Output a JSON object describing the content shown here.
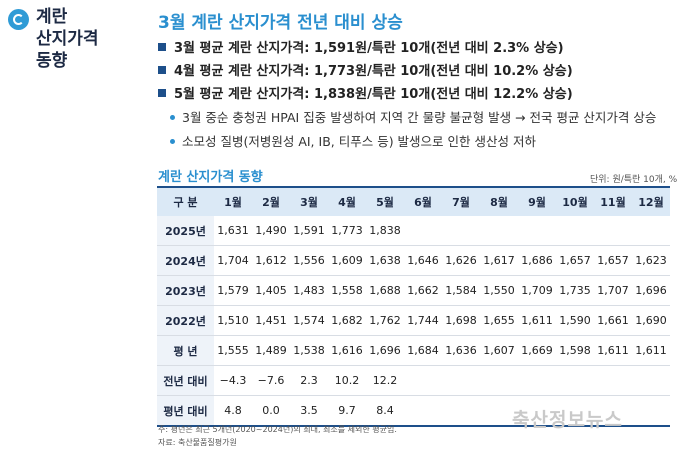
{
  "sidebar": {
    "title_line1": "계란",
    "title_line2": "산지가격",
    "title_line3": "동향",
    "logo_icon": "circle-logo-icon"
  },
  "headline": "3월 계란 산지가격 전년 대비 상승",
  "bullets": [
    "3월 평균 계란 산지가격: 1,591원/특란 10개(전년 대비 2.3% 상승)",
    "4월 평균 계란 산지가격: 1,773원/특란 10개(전년 대비 10.2% 상승)",
    "5월 평균 계란 산지가격: 1,838원/특란 10개(전년 대비 12.2% 상승)"
  ],
  "sub_bullets": [
    "3월 중순 충청권 HPAI 집중 발생하여 지역 간 물량 불균형 발생 → 전국 평균 산지가격 상승",
    "소모성 질병(저병원성 AI, IB, 티푸스 등) 발생으로 인한 생산성 저하"
  ],
  "table": {
    "title": "계란 산지가격 동향",
    "unit": "단위: 원/특란 10개, %",
    "corner": "구  분",
    "columns": [
      "1월",
      "2월",
      "3월",
      "4월",
      "5월",
      "6월",
      "7월",
      "8월",
      "9월",
      "10월",
      "11월",
      "12월"
    ],
    "rows": [
      {
        "label": "2025년",
        "values": [
          "1,631",
          "1,490",
          "1,591",
          "1,773",
          "1,838",
          "",
          "",
          "",
          "",
          "",
          "",
          ""
        ]
      },
      {
        "label": "2024년",
        "values": [
          "1,704",
          "1,612",
          "1,556",
          "1,609",
          "1,638",
          "1,646",
          "1,626",
          "1,617",
          "1,686",
          "1,657",
          "1,657",
          "1,623"
        ]
      },
      {
        "label": "2023년",
        "values": [
          "1,579",
          "1,405",
          "1,483",
          "1,558",
          "1,688",
          "1,662",
          "1,584",
          "1,550",
          "1,709",
          "1,735",
          "1,707",
          "1,696"
        ]
      },
      {
        "label": "2022년",
        "values": [
          "1,510",
          "1,451",
          "1,574",
          "1,682",
          "1,762",
          "1,744",
          "1,698",
          "1,655",
          "1,611",
          "1,590",
          "1,661",
          "1,690"
        ]
      },
      {
        "label": "평  년",
        "values": [
          "1,555",
          "1,489",
          "1,538",
          "1,616",
          "1,696",
          "1,684",
          "1,636",
          "1,607",
          "1,669",
          "1,598",
          "1,611",
          "1,611"
        ]
      },
      {
        "label": "전년 대비",
        "values": [
          "−4.3",
          "−7.6",
          "2.3",
          "10.2",
          "12.2",
          "",
          "",
          "",
          "",
          "",
          "",
          ""
        ]
      },
      {
        "label": "평년 대비",
        "values": [
          "4.8",
          "0.0",
          "3.5",
          "9.7",
          "8.4",
          "",
          "",
          "",
          "",
          "",
          "",
          ""
        ]
      }
    ]
  },
  "footnote": "주: 평년은 최근 5개년(2020~2024년)의 최대, 최소를 제외한 평균임.",
  "source": "자료: 축산물품질평가원",
  "watermark": "축산정보뉴스",
  "colors": {
    "accent": "#2a8fcf",
    "navy": "#1d4f8a",
    "header_bg": "#dbe9f6"
  }
}
